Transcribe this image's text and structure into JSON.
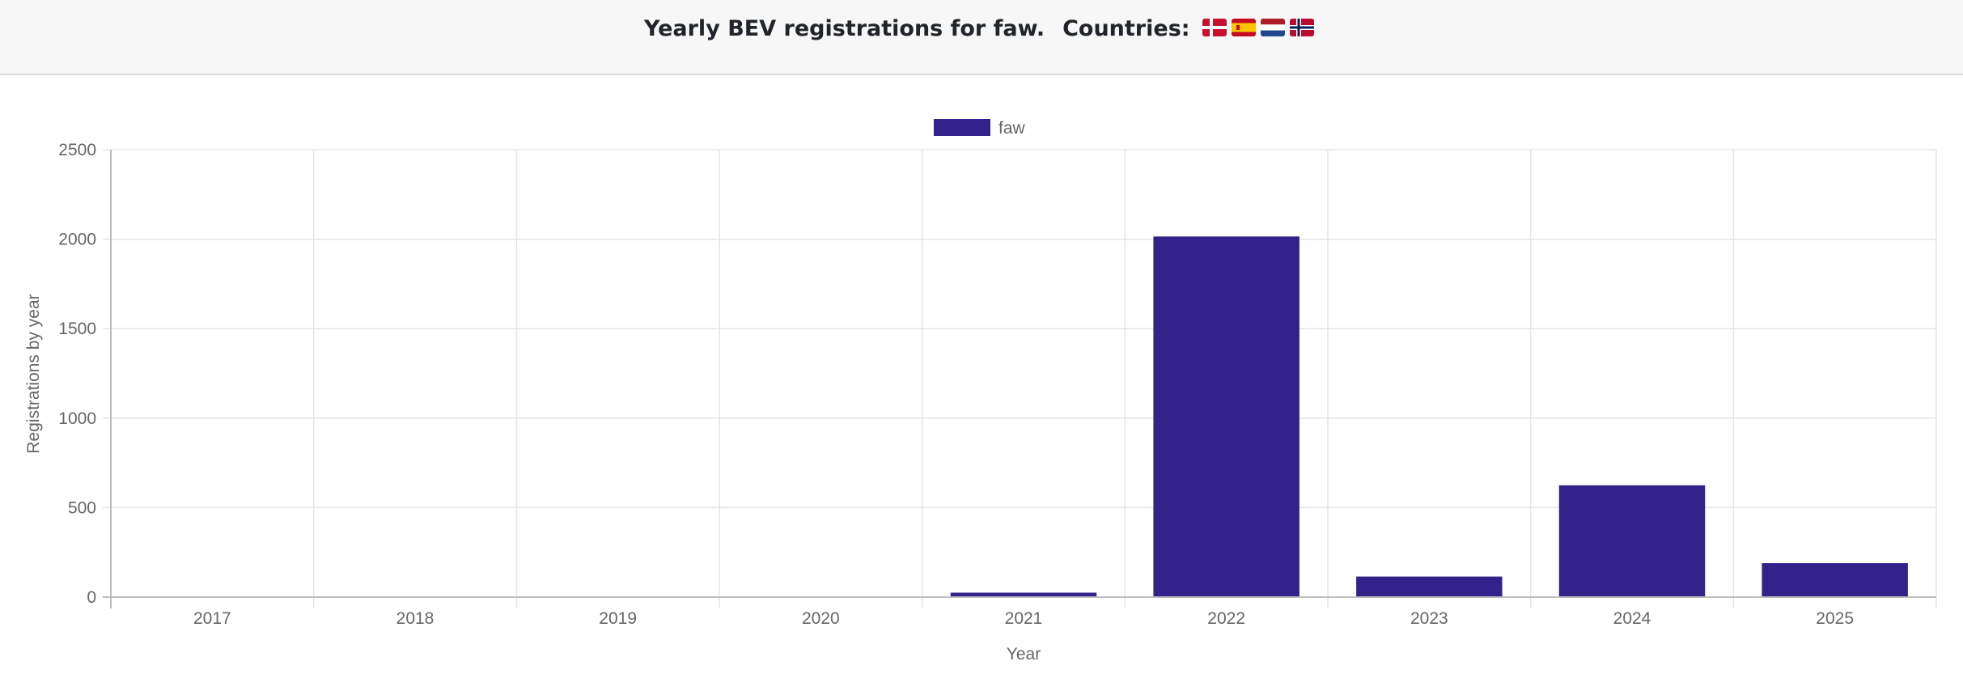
{
  "header": {
    "title": "Yearly BEV registrations for faw.",
    "countries_label": "Countries:",
    "flags": [
      {
        "name": "denmark-flag-icon"
      },
      {
        "name": "spain-flag-icon"
      },
      {
        "name": "netherlands-flag-icon"
      },
      {
        "name": "norway-flag-icon"
      }
    ]
  },
  "colors": {
    "bar": "#33228a",
    "grid": "#e5e5e5",
    "axis": "#bdbdbd",
    "text": "#666666"
  },
  "chart_data": {
    "type": "bar",
    "categories": [
      "2017",
      "2018",
      "2019",
      "2020",
      "2021",
      "2022",
      "2023",
      "2024",
      "2025"
    ],
    "series": [
      {
        "name": "faw",
        "values": [
          0,
          0,
          0,
          0,
          25,
          2015,
          115,
          625,
          190
        ]
      }
    ],
    "xlabel": "Year",
    "ylabel": "Registrations by year",
    "ylim": [
      0,
      2500
    ],
    "yticks": [
      0,
      500,
      1000,
      1500,
      2000,
      2500
    ],
    "grid": true,
    "legend_position": "top"
  }
}
